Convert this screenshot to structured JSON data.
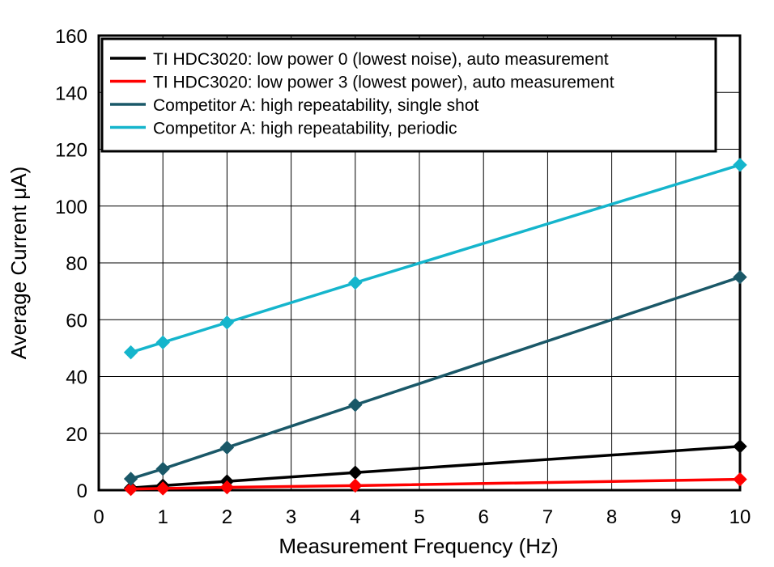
{
  "chart_data": {
    "type": "line",
    "xlabel": "Measurement Frequency (Hz)",
    "ylabel": "Average Current μA)",
    "xlim": [
      0,
      10
    ],
    "ylim": [
      0,
      160
    ],
    "x_ticks": [
      "0",
      "1",
      "2",
      "3",
      "4",
      "5",
      "6",
      "7",
      "8",
      "9",
      "10"
    ],
    "y_ticks": [
      "0",
      "20",
      "40",
      "60",
      "80",
      "100",
      "120",
      "140",
      "160"
    ],
    "grid": true,
    "legend_position": "top-left",
    "marker": "diamond",
    "series": [
      {
        "name": "TI HDC3020: low power 0 (lowest noise), auto measurement",
        "color": "#000000",
        "x": [
          0.5,
          1,
          2,
          4,
          10
        ],
        "y": [
          0.8,
          1.6,
          3.1,
          6.2,
          15.4
        ]
      },
      {
        "name": "TI HDC3020: low power 3 (lowest power), auto measurement",
        "color": "#ff0000",
        "x": [
          0.5,
          1,
          2,
          4,
          10
        ],
        "y": [
          0.4,
          0.6,
          1.0,
          1.6,
          3.8
        ]
      },
      {
        "name": "Competitor A: high repeatability, single shot",
        "color": "#1a5868",
        "x": [
          0.5,
          1,
          2,
          4,
          10
        ],
        "y": [
          4.0,
          7.5,
          15.0,
          30.0,
          75.0
        ]
      },
      {
        "name": "Competitor A: high repeatability, periodic",
        "color": "#15b5cc",
        "x": [
          0.5,
          1,
          2,
          4,
          10
        ],
        "y": [
          48.5,
          52.0,
          59.0,
          73.0,
          114.5
        ]
      }
    ]
  }
}
